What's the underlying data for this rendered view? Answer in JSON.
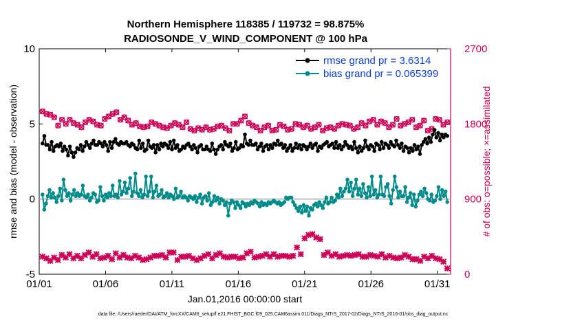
{
  "chart_data": {
    "type": "line",
    "title": "Northern Hemisphere 118385 / 119732 = 98.875%",
    "subtitle": "RADIOSONDE_V_WIND_COMPONENT @ 100 hPa",
    "xlabel": "Jan.01,2016 00:00:00 start",
    "ylabel": "rmse and bias (model - observation)",
    "ylabel_right": "# of obs: o=possible; ×=assimilated",
    "ylim": [
      -5,
      10
    ],
    "ylim_right": [
      0,
      2700
    ],
    "xlim": [
      0,
      31
    ],
    "xticks": [
      0,
      5,
      10,
      15,
      20,
      25,
      30
    ],
    "xtick_labels": [
      "01/01",
      "01/06",
      "01/11",
      "01/16",
      "01/21",
      "01/26",
      "01/31"
    ],
    "yticks": [
      -5,
      0,
      5,
      10
    ],
    "ytick_labels": [
      "-5",
      "0",
      "5",
      "10"
    ],
    "yticks_right": [
      0,
      900,
      1800,
      2700
    ],
    "ytick_labels_right": [
      "0",
      "900",
      "1800",
      "2700"
    ],
    "legend_position": "top-right",
    "legend": [
      "rmse grand pr = 3.6314",
      "bias grand pr = 0.065399"
    ],
    "footnote": "data file: /Users/raeder/DAI/ATM_forcXX/CAM6_setup/f.e21.FHIST_BGC.f09_025.CAM6assim.011/Diags_NTrS_2017-02/Diags_NTrS_2016-01/obs_diag_output.nc",
    "series": [
      {
        "name": "rmse",
        "color": "#000000",
        "values": [
          3.7,
          4.2,
          3.6,
          3.6,
          3.3,
          3.8,
          3.2,
          3.5,
          3.6,
          3.5,
          3.7,
          3.2,
          3.5,
          3.3,
          2.9,
          3.5,
          3.1,
          2.8,
          3.1,
          3.4,
          3.3,
          3.6,
          3.2,
          3.5,
          3.8,
          3.6,
          3.4,
          3.7,
          3.9,
          3.6,
          3.6,
          3.8,
          3.7,
          3.5,
          3.8,
          3.6,
          3.2,
          3.8,
          3.4,
          3.8,
          4.0,
          3.7,
          3.6,
          3.8,
          3.7,
          3.7,
          3.8,
          3.6,
          3.5,
          3.7,
          3.6,
          3.4,
          3.3,
          3.9,
          3.4,
          3.7,
          3.2,
          3.3,
          3.9,
          3.5,
          3.4,
          3.6,
          3.1,
          3.6,
          3.3,
          3.7,
          3.5,
          3.7,
          3.6,
          3.4,
          3.8,
          3.3,
          3.9,
          3.4,
          3.6,
          3.2,
          3.3,
          3.5,
          3.4,
          3.6,
          3.7,
          3.5,
          3.3,
          3.6,
          3.4,
          3.1,
          3.5,
          3.6,
          3.3,
          3.3,
          3.5,
          3.3,
          3.2,
          3.7,
          3.3,
          3.0,
          3.3,
          3.5,
          3.6,
          3.3,
          3.8,
          3.6,
          3.5,
          3.7,
          3.2,
          3.4,
          3.8,
          3.3,
          3.4,
          3.6,
          3.5,
          4.3,
          3.7,
          3.6,
          3.9,
          3.6,
          3.6,
          3.7,
          3.3,
          3.5,
          3.7,
          3.2,
          3.5,
          3.6,
          3.3,
          3.6,
          3.4,
          3.7,
          3.6,
          3.9,
          3.6,
          3.7,
          3.4,
          3.6,
          3.2,
          3.4,
          3.6,
          3.2,
          3.4,
          3.7,
          3.4,
          3.6,
          3.3,
          3.6,
          3.5,
          3.3,
          3.5,
          3.7,
          3.4,
          3.6,
          3.7,
          3.2,
          3.5,
          3.4,
          3.6,
          3.7,
          3.8,
          3.5,
          3.6,
          3.7,
          3.4,
          3.8,
          3.4,
          3.6,
          3.3,
          3.5,
          3.8,
          3.6,
          3.4,
          3.5,
          3.3,
          3.8,
          3.4,
          3.1,
          3.5,
          3.2,
          3.4,
          3.9,
          3.5,
          3.3,
          3.6,
          3.5,
          3.2,
          3.7,
          3.6,
          3.3,
          3.8,
          3.4,
          3.7,
          3.6,
          3.4,
          3.8,
          3.6,
          3.5,
          3.9,
          3.6,
          3.4,
          3.7,
          3.2,
          3.5,
          3.4,
          3.1,
          3.4,
          3.2,
          3.6,
          3.3,
          3.5,
          3.0,
          3.6,
          3.8,
          4.0,
          3.7,
          4.1,
          3.8,
          4.3,
          4.6,
          4.1,
          4.4,
          3.9,
          4.3,
          4.1,
          4.3,
          4.2
        ]
      },
      {
        "name": "bias",
        "color": "#008b8b",
        "values": [
          0.3,
          -0.7,
          -0.3,
          0.2,
          0.6,
          0.1,
          0.4,
          0.1,
          -0.2,
          0.2,
          0.7,
          -0.1,
          1.3,
          0.6,
          0.2,
          0.4,
          -0.1,
          0.3,
          0.6,
          0.2,
          0.4,
          0.2,
          0.3,
          0.9,
          0.2,
          0.1,
          0.3,
          -0.1,
          0.1,
          0.4,
          0.3,
          -0.2,
          -0.1,
          0.8,
          0.2,
          -0.1,
          0.3,
          0.1,
          0.4,
          0.2,
          0.9,
          0.2,
          0.3,
          0.1,
          1.2,
          0.3,
          0.5,
          1.1,
          0.4,
          0.7,
          1.4,
          0.2,
          0.5,
          1.7,
          0.4,
          0.2,
          0.6,
          0.1,
          0.3,
          1.5,
          0.2,
          0.5,
          1.5,
          0.1,
          0.5,
          0.9,
          0.2,
          0.3,
          0.6,
          0.1,
          0.2,
          0.4,
          0.1,
          0.3,
          0.2,
          0.0,
          0.7,
          0.1,
          0.2,
          0.5,
          0.1,
          0.2,
          0.1,
          -0.1,
          0.2,
          0.1,
          0.0,
          0.2,
          -0.2,
          0.1,
          0.3,
          -0.3,
          0.1,
          0.2,
          -0.1,
          0.4,
          -0.4,
          -0.2,
          0.2,
          -0.1,
          0.1,
          -0.3,
          0.0,
          -0.1,
          -0.4,
          -0.2,
          -1.1,
          -0.3,
          -0.1,
          -0.2,
          -0.6,
          -0.2,
          -0.4,
          -0.6,
          -0.2,
          -0.3,
          -0.5,
          -0.3,
          -0.4,
          -0.2,
          -0.3,
          -0.1,
          -0.2,
          -0.3,
          -0.5,
          -0.2,
          -0.4,
          -0.3,
          -0.4,
          -0.2,
          -0.3,
          -0.2,
          -0.1,
          -0.2,
          -0.3,
          -0.2,
          -0.4,
          -0.3,
          -0.2,
          0.1,
          0.0,
          0.1,
          0.1,
          -0.2,
          -0.4,
          -0.6,
          -0.8,
          -0.5,
          -0.9,
          -0.4,
          -0.8,
          -0.5,
          -1.1,
          -0.6,
          -0.7,
          -0.4,
          -0.3,
          -0.5,
          -0.2,
          -0.4,
          -0.6,
          -0.2,
          0.1,
          -0.3,
          -0.2,
          0.1,
          -0.2,
          -0.1,
          0.3,
          0.1,
          0.7,
          0.2,
          0.5,
          0.7,
          1.3,
          0.5,
          1.1,
          0.2,
          0.7,
          1.3,
          0.3,
          0.7,
          0.2,
          1.0,
          0.4,
          0.1,
          0.8,
          0.2,
          1.5,
          0.3,
          0.6,
          0.1,
          0.3,
          1.5,
          0.3,
          0.2,
          0.8,
          1.0,
          0.2,
          -0.3,
          0.6,
          1.5,
          0.8,
          0.1,
          0.5,
          0.2,
          0.2,
          0.8,
          -0.2,
          0.1,
          0.4,
          -0.4,
          0.3,
          -0.5,
          -0.1,
          0.3,
          0.5,
          0.2,
          0.7,
          0.4,
          0.0,
          -0.1,
          0.3,
          -0.2,
          -0.1,
          0.2,
          0.8,
          0.0,
          0.6,
          0.2,
          0.5,
          -0.2
        ]
      },
      {
        "name": "possible",
        "color": "#cc0055",
        "axis": "right",
        "values": [
          1950,
          1920,
          1910,
          1880,
          1780,
          1850,
          1800,
          1850,
          1810,
          1790,
          1760,
          1820,
          1850,
          1830,
          1790,
          1780,
          1860,
          1890,
          1920,
          1940,
          1850,
          1880,
          1840,
          1790,
          1810,
          1770,
          1760,
          1770,
          1820,
          1800,
          1780,
          1760,
          1750,
          1780,
          1810,
          1790,
          1760,
          1820,
          1740,
          1720,
          1750,
          1730,
          1760,
          1730,
          1740,
          1770,
          1780,
          1750,
          1720,
          1800,
          1800,
          1840,
          1890,
          1810,
          1780,
          1760,
          1720,
          1760,
          1780,
          1720,
          1730,
          1790,
          1770,
          1730,
          1740,
          1800,
          1790,
          1760,
          1780,
          1740,
          1760,
          1790,
          1720,
          1750,
          1760,
          1740,
          1780,
          1800,
          1790,
          1780,
          1740,
          1760,
          1810,
          1780,
          1830,
          1850,
          1790,
          1830,
          1810,
          1760,
          1790,
          1860,
          1780,
          1800,
          1820,
          1850,
          1760,
          1780,
          1840,
          1720,
          1740,
          1860,
          1850,
          1790,
          1820
        ]
      },
      {
        "name": "assimilated",
        "color": "#cc0055",
        "axis": "right",
        "values": [
          210,
          190,
          160,
          200,
          170,
          230,
          200,
          240,
          190,
          220,
          190,
          230,
          260,
          210,
          240,
          190,
          200,
          220,
          180,
          250,
          200,
          230,
          200,
          190,
          220,
          200,
          170,
          180,
          200,
          220,
          220,
          230,
          200,
          260,
          260,
          170,
          210,
          210,
          220,
          190,
          170,
          190,
          220,
          240,
          190,
          230,
          250,
          210,
          200,
          210,
          210,
          190,
          200,
          250,
          270,
          200,
          210,
          220,
          240,
          210,
          240,
          210,
          220,
          220,
          210,
          220,
          320,
          240,
          430,
          470,
          480,
          440,
          420,
          230,
          260,
          220,
          240,
          210,
          220,
          230,
          220,
          230,
          240,
          210,
          210,
          230,
          220,
          210,
          240,
          200,
          220,
          200,
          190,
          200,
          230,
          210,
          180,
          180,
          160,
          210,
          190,
          220,
          190,
          180,
          150,
          70
        ]
      }
    ]
  }
}
